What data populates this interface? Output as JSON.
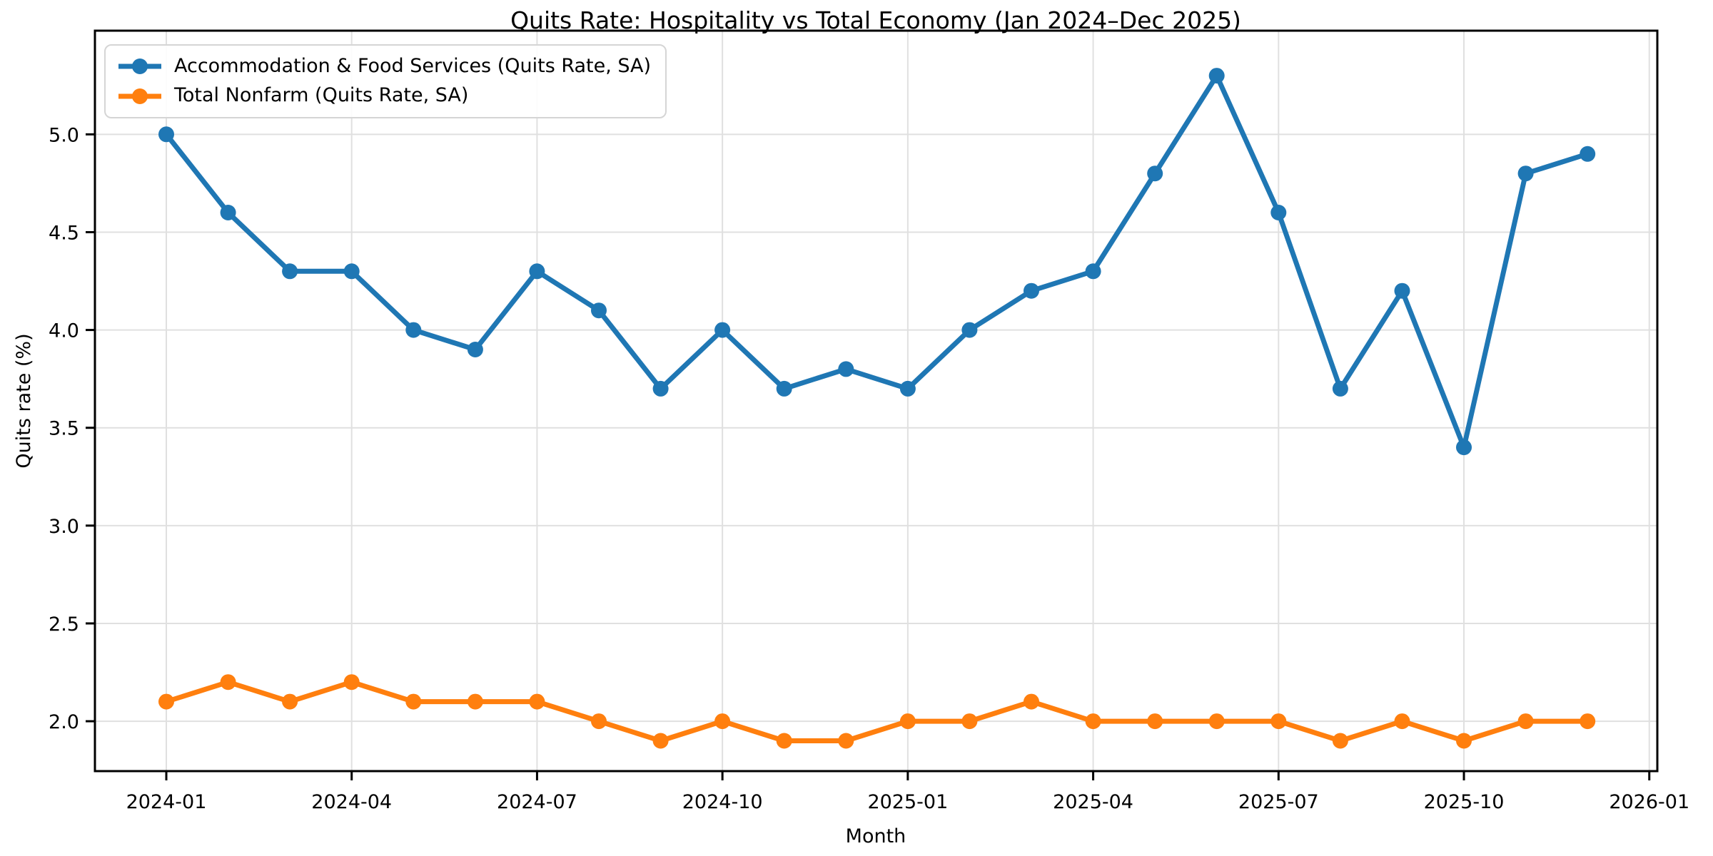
{
  "chart_data": {
    "type": "line",
    "title": "Quits Rate: Hospitality vs Total Economy (Jan 2024–Dec 2025)",
    "xlabel": "Month",
    "ylabel": "Quits rate (%)",
    "grid": true,
    "legend_position": "upper left",
    "x": [
      "2024-01",
      "2024-02",
      "2024-03",
      "2024-04",
      "2024-05",
      "2024-06",
      "2024-07",
      "2024-08",
      "2024-09",
      "2024-10",
      "2024-11",
      "2024-12",
      "2025-01",
      "2025-02",
      "2025-03",
      "2025-04",
      "2025-05",
      "2025-06",
      "2025-07",
      "2025-08",
      "2025-09",
      "2025-10",
      "2025-11",
      "2025-12"
    ],
    "series": [
      {
        "name": "Accommodation & Food Services (Quits Rate, SA)",
        "color": "#1f77b4",
        "values": [
          5.0,
          4.6,
          4.3,
          4.3,
          4.0,
          3.9,
          4.3,
          4.1,
          3.7,
          4.0,
          3.7,
          3.8,
          3.7,
          4.0,
          4.2,
          4.3,
          4.8,
          5.3,
          4.6,
          3.7,
          4.2,
          3.4,
          4.8,
          4.9
        ]
      },
      {
        "name": "Total Nonfarm (Quits Rate, SA)",
        "color": "#ff7f0e",
        "values": [
          2.1,
          2.2,
          2.1,
          2.2,
          2.1,
          2.1,
          2.1,
          2.0,
          1.9,
          2.0,
          1.9,
          1.9,
          2.0,
          2.0,
          2.1,
          2.0,
          2.0,
          2.0,
          2.0,
          1.9,
          2.0,
          1.9,
          2.0,
          2.0
        ]
      }
    ],
    "x_tick_labels": [
      "2024-01",
      "2024-04",
      "2024-07",
      "2024-10",
      "2025-01",
      "2025-04",
      "2025-07",
      "2025-10",
      "2026-01"
    ],
    "x_tick_months": [
      0,
      3,
      6,
      9,
      12,
      15,
      18,
      21,
      24
    ],
    "y_ticks": [
      2.0,
      2.5,
      3.0,
      3.5,
      4.0,
      4.5,
      5.0
    ],
    "y_tick_labels": [
      "2.0",
      "2.5",
      "3.0",
      "3.5",
      "4.0",
      "4.5",
      "5.0"
    ],
    "ylim": [
      1.745,
      5.53
    ],
    "xlim_months": [
      -1.155,
      24.13
    ]
  }
}
